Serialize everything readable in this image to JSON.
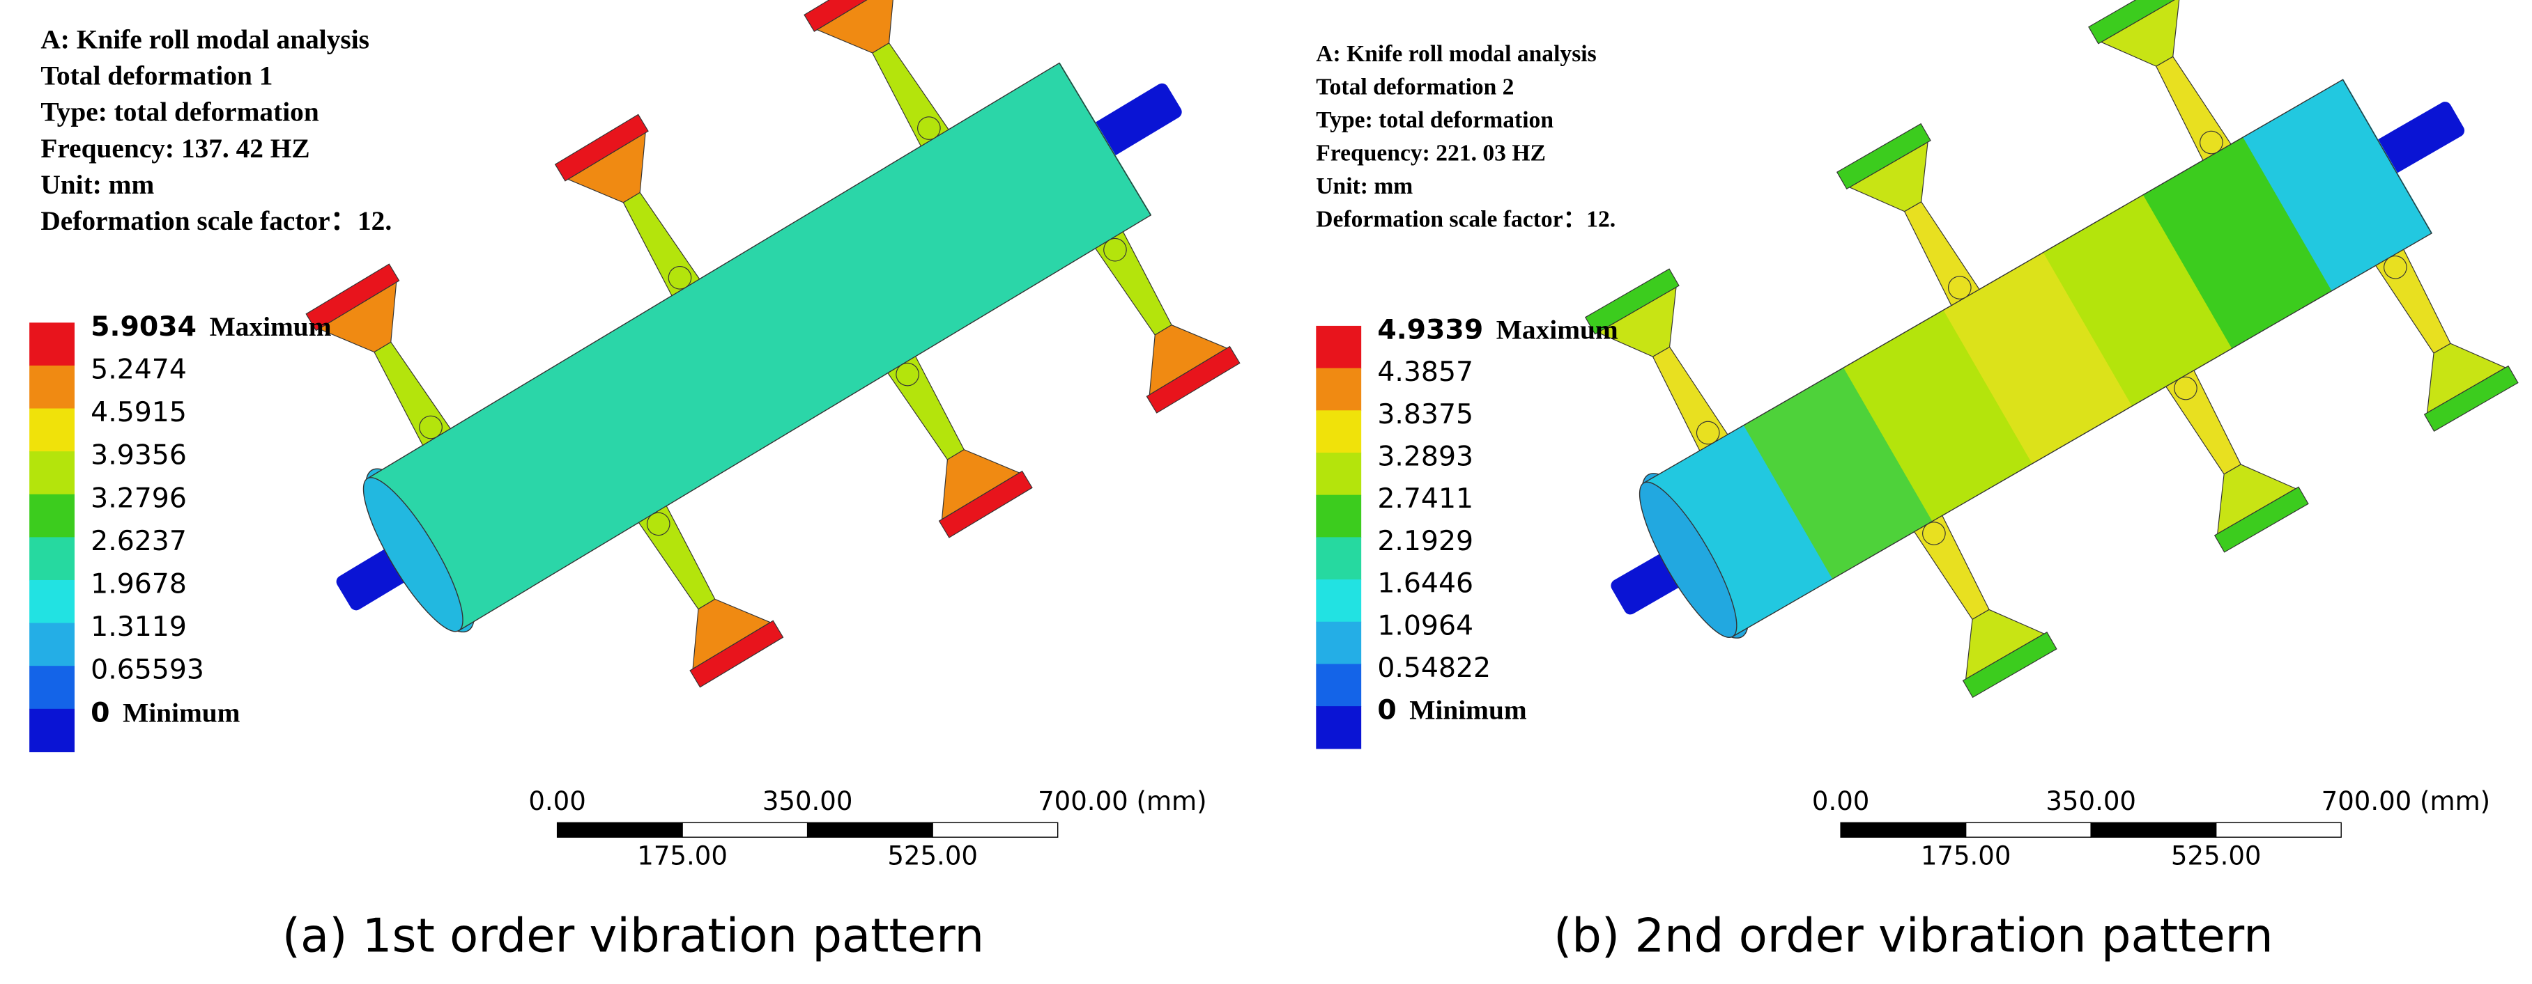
{
  "panels": [
    {
      "header": [
        "A:  Knife roll modal analysis",
        "Total deformation 1",
        "Type: total deformation",
        "Frequency: 137. 42  HZ",
        "Unit: mm",
        "Deformation scale factor：12."
      ],
      "legend": {
        "max_label": "Maximum",
        "min_label": "Minimum",
        "values": [
          "5.9034",
          "5.2474",
          "4.5915",
          "3.9356",
          "3.2796",
          "2.6237",
          "1.9678",
          "1.3119",
          "0.65593",
          "0"
        ],
        "colors": [
          "#e8141c",
          "#f08a12",
          "#f0e20a",
          "#b4e40c",
          "#3ccc1e",
          "#26d9a0",
          "#22e2e2",
          "#24aee6",
          "#1464e8",
          "#0a14d4"
        ]
      },
      "scale": {
        "top": [
          "0.00",
          "350.00",
          "700.00 (mm)"
        ],
        "bottom": [
          "175.00",
          "525.00"
        ]
      },
      "caption": "(a) 1st order vibration pattern"
    },
    {
      "header": [
        "A:  Knife roll modal analysis",
        "Total deformation 2",
        "Type: total deformation",
        "Frequency: 221. 03  HZ",
        "Unit: mm",
        "Deformation scale factor：12."
      ],
      "legend": {
        "max_label": "Maximum",
        "min_label": "Minimum",
        "values": [
          "4.9339",
          "4.3857",
          "3.8375",
          "3.2893",
          "2.7411",
          "2.1929",
          "1.6446",
          "1.0964",
          "0.54822",
          "0"
        ],
        "colors": [
          "#e8141c",
          "#f08a12",
          "#f0e20a",
          "#b4e40c",
          "#3ccc1e",
          "#26d9a0",
          "#22e2e2",
          "#24aee6",
          "#1464e8",
          "#0a14d4"
        ]
      },
      "scale": {
        "top": [
          "0.00",
          "350.00",
          "700.00 (mm)"
        ],
        "bottom": [
          "175.00",
          "525.00"
        ]
      },
      "caption": "(b) 2nd order vibration pattern"
    }
  ]
}
